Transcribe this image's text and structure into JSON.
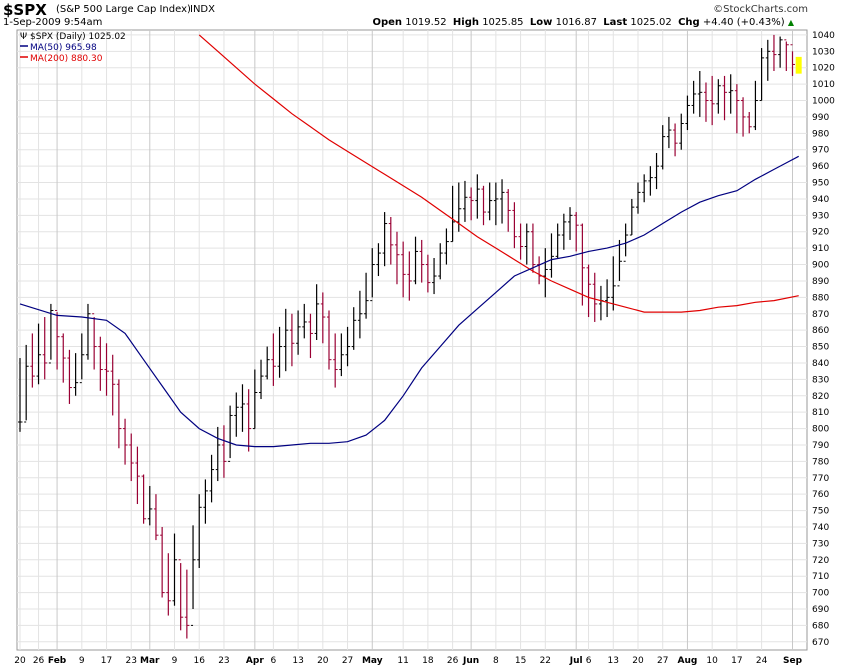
{
  "header": {
    "symbol": "$SPX",
    "description": "(S&P 500 Large Cap Index)",
    "exchange": "INDX",
    "date": "1-Sep-2009 9:54am",
    "brand": "©StockCharts.com",
    "quote": {
      "open_label": "Open",
      "open": "1019.52",
      "high_label": "High",
      "high": "1025.85",
      "low_label": "Low",
      "low": "1016.87",
      "last_label": "Last",
      "last": "1025.02",
      "chg_label": "Chg",
      "chg": "+4.40 (+0.43%)",
      "chg_arrow": "▲"
    }
  },
  "legend": {
    "price": "$SPX (Daily) 1025.02",
    "ma50": "MA(50) 965.98",
    "ma200": "MA(200) 880.30",
    "ma50_color": "#000080",
    "ma200_color": "#e00000"
  },
  "chart_data": {
    "type": "line",
    "ylim": [
      665,
      1043
    ],
    "yticks": [
      670,
      680,
      690,
      700,
      710,
      720,
      730,
      740,
      750,
      760,
      770,
      780,
      790,
      800,
      810,
      820,
      830,
      840,
      850,
      860,
      870,
      880,
      890,
      900,
      910,
      920,
      930,
      940,
      950,
      960,
      970,
      980,
      990,
      1000,
      1010,
      1020,
      1030,
      1040
    ],
    "grid": true,
    "xtick_labels": [
      {
        "d": 0,
        "label": "20"
      },
      {
        "d": 3,
        "label": "26"
      },
      {
        "d": 6,
        "label": "Feb",
        "bold": true
      },
      {
        "d": 10,
        "label": "9"
      },
      {
        "d": 14,
        "label": "17"
      },
      {
        "d": 18,
        "label": "23"
      },
      {
        "d": 21,
        "label": "Mar",
        "bold": true
      },
      {
        "d": 25,
        "label": "9"
      },
      {
        "d": 29,
        "label": "16"
      },
      {
        "d": 33,
        "label": "23"
      },
      {
        "d": 38,
        "label": "Apr",
        "bold": true
      },
      {
        "d": 41,
        "label": "6"
      },
      {
        "d": 45,
        "label": "13"
      },
      {
        "d": 49,
        "label": "20"
      },
      {
        "d": 53,
        "label": "27"
      },
      {
        "d": 57,
        "label": "May",
        "bold": true
      },
      {
        "d": 62,
        "label": "11"
      },
      {
        "d": 66,
        "label": "18"
      },
      {
        "d": 70,
        "label": "26"
      },
      {
        "d": 73,
        "label": "Jun",
        "bold": true
      },
      {
        "d": 77,
        "label": "8"
      },
      {
        "d": 81,
        "label": "15"
      },
      {
        "d": 85,
        "label": "22"
      },
      {
        "d": 90,
        "label": "Jul",
        "bold": true
      },
      {
        "d": 92,
        "label": "6"
      },
      {
        "d": 96,
        "label": "13"
      },
      {
        "d": 100,
        "label": "20"
      },
      {
        "d": 104,
        "label": "27"
      },
      {
        "d": 108,
        "label": "Aug",
        "bold": true
      },
      {
        "d": 112,
        "label": "10"
      },
      {
        "d": 116,
        "label": "17"
      },
      {
        "d": 120,
        "label": "24"
      },
      {
        "d": 125,
        "label": "Sep",
        "bold": true
      }
    ],
    "price_series": {
      "name": "$SPX (Daily)",
      "closes": [
        804,
        838,
        832,
        845,
        840,
        872,
        856,
        843,
        825,
        828,
        845,
        870,
        850,
        836,
        835,
        827,
        800,
        790,
        779,
        771,
        745,
        751,
        735,
        700,
        695,
        720,
        685,
        680,
        720,
        752,
        762,
        775,
        790,
        780,
        808,
        813,
        815,
        800,
        822,
        832,
        842,
        838,
        850,
        860,
        852,
        862,
        865,
        858,
        876,
        868,
        842,
        836,
        845,
        850,
        866,
        870,
        878,
        900,
        907,
        925,
        912,
        906,
        894,
        890,
        908,
        900,
        889,
        893,
        907,
        914,
        926,
        934,
        941,
        939,
        946,
        932,
        939,
        940,
        944,
        933,
        917,
        911,
        920,
        900,
        893,
        897,
        905,
        918,
        926,
        930,
        924,
        898,
        888,
        876,
        878,
        880,
        887,
        902,
        918,
        935,
        944,
        951,
        953,
        960,
        978,
        982,
        974,
        986,
        997,
        1004,
        1005,
        1000,
        998,
        1009,
        1005,
        1006,
        1000,
        990,
        984,
        1000,
        1026,
        1030,
        1028,
        1037,
        1034,
        1022,
        1025
      ],
      "highs": [
        843,
        851,
        858,
        864,
        868,
        876,
        871,
        858,
        848,
        846,
        858,
        876,
        868,
        856,
        852,
        845,
        830,
        806,
        797,
        789,
        772,
        765,
        760,
        740,
        724,
        736,
        718,
        714,
        741,
        760,
        769,
        784,
        801,
        802,
        814,
        822,
        827,
        824,
        836,
        842,
        850,
        858,
        862,
        873,
        870,
        872,
        876,
        870,
        888,
        883,
        872,
        858,
        858,
        862,
        874,
        884,
        895,
        910,
        913,
        932,
        929,
        920,
        914,
        908,
        917,
        915,
        906,
        904,
        913,
        922,
        948,
        950,
        951,
        947,
        955,
        948,
        950,
        950,
        952,
        946,
        938,
        925,
        925,
        925,
        905,
        910,
        919,
        925,
        931,
        935,
        932,
        925,
        900,
        895,
        887,
        891,
        905,
        915,
        925,
        940,
        950,
        955,
        960,
        968,
        985,
        990,
        986,
        992,
        1003,
        1012,
        1018,
        1011,
        1015,
        1013,
        1015,
        1016,
        1010,
        1002,
        993,
        1012,
        1032,
        1037,
        1040,
        1039,
        1036,
        1030,
        1026
      ],
      "lows": [
        798,
        805,
        825,
        827,
        830,
        842,
        836,
        828,
        815,
        820,
        830,
        842,
        836,
        823,
        820,
        808,
        788,
        778,
        768,
        754,
        742,
        741,
        732,
        697,
        686,
        692,
        677,
        672,
        690,
        715,
        742,
        755,
        768,
        770,
        782,
        795,
        798,
        786,
        800,
        818,
        830,
        826,
        831,
        835,
        838,
        845,
        855,
        843,
        854,
        852,
        836,
        825,
        832,
        838,
        848,
        855,
        867,
        880,
        893,
        899,
        900,
        888,
        880,
        878,
        888,
        889,
        883,
        882,
        891,
        900,
        914,
        920,
        926,
        927,
        928,
        924,
        927,
        924,
        925,
        920,
        910,
        903,
        900,
        895,
        888,
        880,
        892,
        904,
        909,
        915,
        908,
        875,
        868,
        865,
        866,
        868,
        872,
        890,
        905,
        918,
        931,
        938,
        942,
        946,
        958,
        971,
        966,
        970,
        982,
        992,
        990,
        987,
        985,
        992,
        988,
        992,
        980,
        978,
        980,
        982,
        1000,
        1012,
        1018,
        1020,
        1018,
        1015,
        1017
      ],
      "down_color": "#990033",
      "up_color": "#000000"
    },
    "ma50": {
      "name": "MA(50)",
      "points": [
        [
          0,
          876
        ],
        [
          6,
          869
        ],
        [
          10,
          868
        ],
        [
          14,
          866
        ],
        [
          17,
          858
        ],
        [
          20,
          842
        ],
        [
          23,
          826
        ],
        [
          26,
          810
        ],
        [
          29,
          800
        ],
        [
          32,
          794
        ],
        [
          35,
          790
        ],
        [
          38,
          789
        ],
        [
          41,
          789
        ],
        [
          44,
          790
        ],
        [
          47,
          791
        ],
        [
          50,
          791
        ],
        [
          53,
          792
        ],
        [
          56,
          796
        ],
        [
          59,
          805
        ],
        [
          62,
          820
        ],
        [
          65,
          837
        ],
        [
          68,
          850
        ],
        [
          71,
          863
        ],
        [
          74,
          873
        ],
        [
          77,
          883
        ],
        [
          80,
          893
        ],
        [
          83,
          898
        ],
        [
          86,
          903
        ],
        [
          89,
          905
        ],
        [
          92,
          908
        ],
        [
          95,
          910
        ],
        [
          98,
          913
        ],
        [
          101,
          918
        ],
        [
          104,
          925
        ],
        [
          107,
          932
        ],
        [
          110,
          938
        ],
        [
          113,
          942
        ],
        [
          116,
          945
        ],
        [
          119,
          952
        ],
        [
          122,
          958
        ],
        [
          124,
          962
        ],
        [
          126,
          966
        ]
      ]
    },
    "ma200": {
      "name": "MA(200)",
      "points": [
        [
          29,
          1040
        ],
        [
          32,
          1030
        ],
        [
          35,
          1020
        ],
        [
          38,
          1010
        ],
        [
          41,
          1001
        ],
        [
          44,
          992
        ],
        [
          47,
          984
        ],
        [
          50,
          976
        ],
        [
          53,
          969
        ],
        [
          56,
          962
        ],
        [
          59,
          955
        ],
        [
          62,
          948
        ],
        [
          65,
          941
        ],
        [
          68,
          933
        ],
        [
          71,
          925
        ],
        [
          74,
          917
        ],
        [
          77,
          910
        ],
        [
          80,
          903
        ],
        [
          83,
          896
        ],
        [
          86,
          890
        ],
        [
          89,
          885
        ],
        [
          92,
          880
        ],
        [
          95,
          877
        ],
        [
          98,
          874
        ],
        [
          101,
          871
        ],
        [
          104,
          871
        ],
        [
          107,
          871
        ],
        [
          110,
          872
        ],
        [
          113,
          874
        ],
        [
          116,
          875
        ],
        [
          119,
          877
        ],
        [
          122,
          878
        ],
        [
          126,
          881
        ]
      ]
    }
  }
}
